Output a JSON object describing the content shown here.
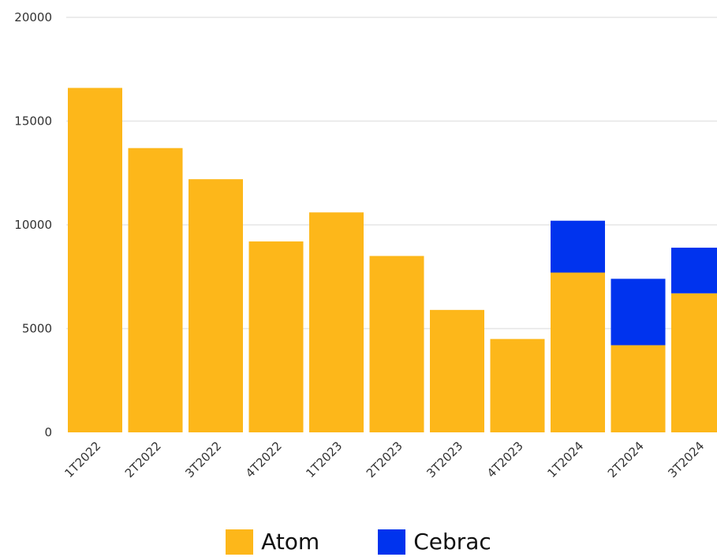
{
  "chart_data": {
    "type": "bar",
    "stacked": true,
    "categories": [
      "1T2022",
      "2T2022",
      "3T2022",
      "4T2022",
      "1T2023",
      "2T2023",
      "3T2023",
      "4T2023",
      "1T2024",
      "2T2024",
      "3T2024"
    ],
    "series": [
      {
        "name": "Atom",
        "color": "#FDB71A",
        "values": [
          16600,
          13700,
          12200,
          9200,
          10600,
          8500,
          5900,
          4500,
          7700,
          4200,
          6700
        ]
      },
      {
        "name": "Cebrac",
        "color": "#0033EE",
        "values": [
          0,
          0,
          0,
          0,
          0,
          0,
          0,
          0,
          2500,
          3200,
          2200
        ]
      }
    ],
    "ylim": [
      0,
      20000
    ],
    "yticks": [
      "0",
      "5000",
      "10000",
      "15000",
      "20000"
    ],
    "grid": true,
    "legend_position": "bottom"
  }
}
